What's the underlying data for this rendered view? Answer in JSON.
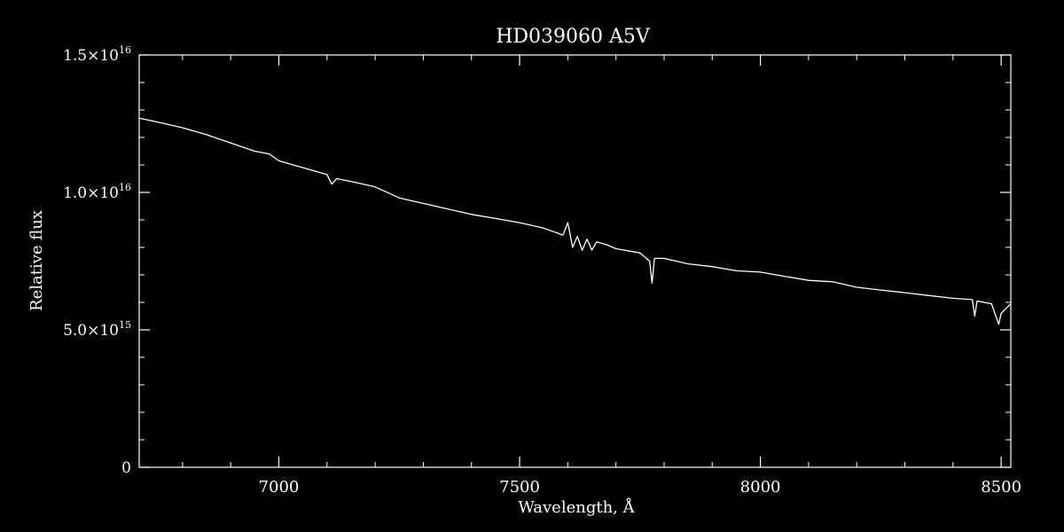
{
  "chart_data": {
    "type": "line",
    "title": "HD039060   A5V",
    "xlabel": "Wavelength, Å",
    "ylabel": "Relative flux",
    "xlim": [
      6710,
      8520
    ],
    "ylim": [
      0,
      1.5e+16
    ],
    "xticks": [
      {
        "value": 7000,
        "label": "7000"
      },
      {
        "value": 7500,
        "label": "7500"
      },
      {
        "value": 8000,
        "label": "8000"
      },
      {
        "value": 8500,
        "label": "8500"
      }
    ],
    "yticks": [
      {
        "value": 0,
        "mant": "0",
        "exp": ""
      },
      {
        "value": 5000000000000000.0,
        "mant": "5.0×10",
        "exp": "15"
      },
      {
        "value": 1e+16,
        "mant": "1.0×10",
        "exp": "16"
      },
      {
        "value": 1.5e+16,
        "mant": "1.5×10",
        "exp": "16"
      }
    ],
    "grid": false,
    "series": [
      {
        "color": "#ffffff",
        "points": [
          [
            6710,
            1.27e+16
          ],
          [
            6750,
            1.255e+16
          ],
          [
            6800,
            1.235e+16
          ],
          [
            6850,
            1.21e+16
          ],
          [
            6900,
            1.18e+16
          ],
          [
            6950,
            1.15e+16
          ],
          [
            6980,
            1.14e+16
          ],
          [
            7000,
            1.115e+16
          ],
          [
            7050,
            1.09e+16
          ],
          [
            7100,
            1.065e+16
          ],
          [
            7110,
            1.03e+16
          ],
          [
            7120,
            1.05e+16
          ],
          [
            7150,
            1.04e+16
          ],
          [
            7200,
            1.02e+16
          ],
          [
            7250,
            9800000000000000.0
          ],
          [
            7300,
            9600000000000000.0
          ],
          [
            7350,
            9400000000000000.0
          ],
          [
            7400,
            9200000000000000.0
          ],
          [
            7450,
            9050000000000000.0
          ],
          [
            7500,
            8900000000000000.0
          ],
          [
            7550,
            8700000000000000.0
          ],
          [
            7590,
            8450000000000000.0
          ],
          [
            7600,
            8900000000000000.0
          ],
          [
            7610,
            8000000000000000.0
          ],
          [
            7620,
            8400000000000000.0
          ],
          [
            7630,
            7900000000000000.0
          ],
          [
            7640,
            8300000000000000.0
          ],
          [
            7650,
            7900000000000000.0
          ],
          [
            7660,
            8200000000000000.0
          ],
          [
            7680,
            8100000000000000.0
          ],
          [
            7700,
            7950000000000000.0
          ],
          [
            7750,
            7800000000000000.0
          ],
          [
            7770,
            7500000000000000.0
          ],
          [
            7775,
            6700000000000000.0
          ],
          [
            7780,
            7600000000000000.0
          ],
          [
            7800,
            7600000000000000.0
          ],
          [
            7850,
            7400000000000000.0
          ],
          [
            7900,
            7300000000000000.0
          ],
          [
            7950,
            7150000000000000.0
          ],
          [
            8000,
            7100000000000000.0
          ],
          [
            8050,
            6950000000000000.0
          ],
          [
            8100,
            6800000000000000.0
          ],
          [
            8150,
            6750000000000000.0
          ],
          [
            8200,
            6550000000000000.0
          ],
          [
            8250,
            6450000000000000.0
          ],
          [
            8300,
            6350000000000000.0
          ],
          [
            8350,
            6250000000000000.0
          ],
          [
            8400,
            6150000000000000.0
          ],
          [
            8440,
            6100000000000000.0
          ],
          [
            8445,
            5500000000000000.0
          ],
          [
            8450,
            6050000000000000.0
          ],
          [
            8480,
            5950000000000000.0
          ],
          [
            8495,
            5200000000000000.0
          ],
          [
            8500,
            5600000000000000.0
          ],
          [
            8520,
            5950000000000000.0
          ]
        ]
      }
    ]
  }
}
